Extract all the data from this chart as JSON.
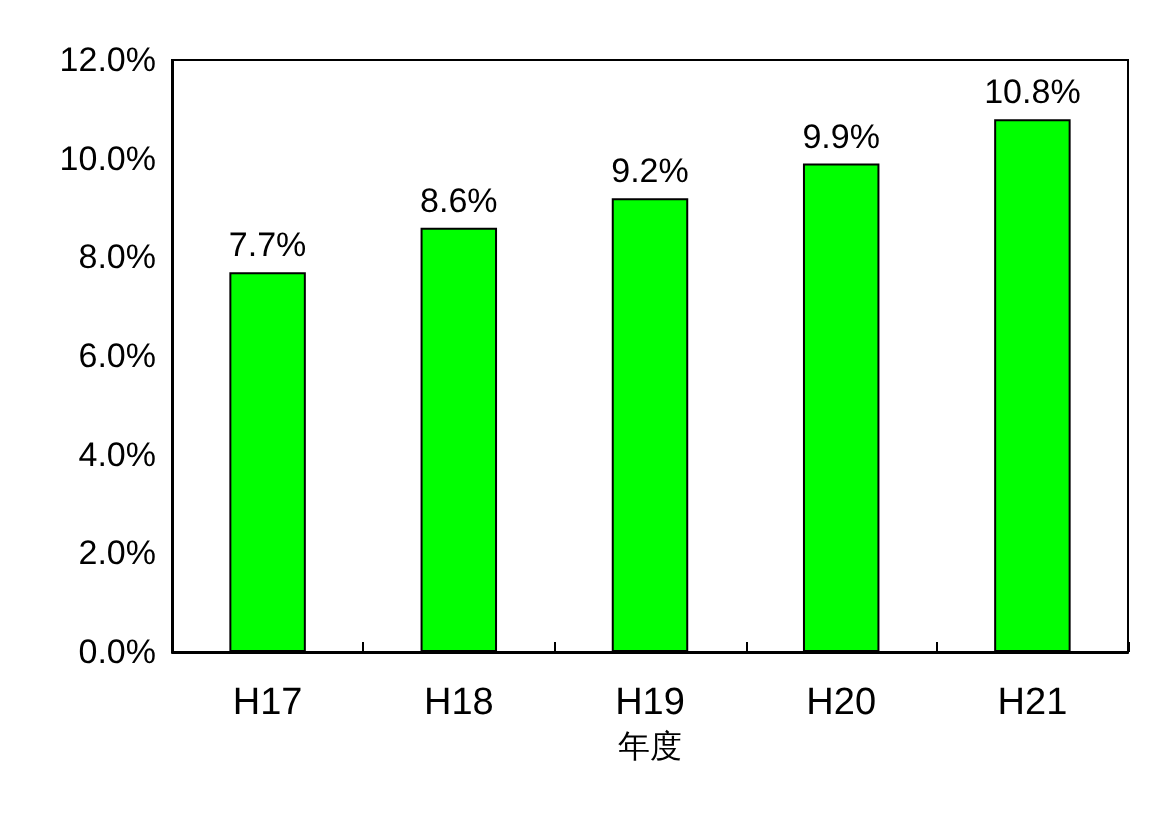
{
  "chart_data": {
    "type": "bar",
    "xlabel": "年度",
    "categories": [
      "H17",
      "H18",
      "H19",
      "H20",
      "H21"
    ],
    "values": [
      7.7,
      8.6,
      9.2,
      9.9,
      10.8
    ],
    "value_labels": [
      "7.7%",
      "8.6%",
      "9.2%",
      "9.9%",
      "10.8%"
    ],
    "color": "#00ff00",
    "ylim": [
      0,
      12
    ],
    "yticks": [
      {
        "value": 0,
        "label": "0.0%"
      },
      {
        "value": 2,
        "label": "2.0%"
      },
      {
        "value": 4,
        "label": "4.0%"
      },
      {
        "value": 6,
        "label": "6.0%"
      },
      {
        "value": 8,
        "label": "8.0%"
      },
      {
        "value": 10,
        "label": "10.0%"
      },
      {
        "value": 12,
        "label": "12.0%"
      }
    ],
    "grid": false
  }
}
